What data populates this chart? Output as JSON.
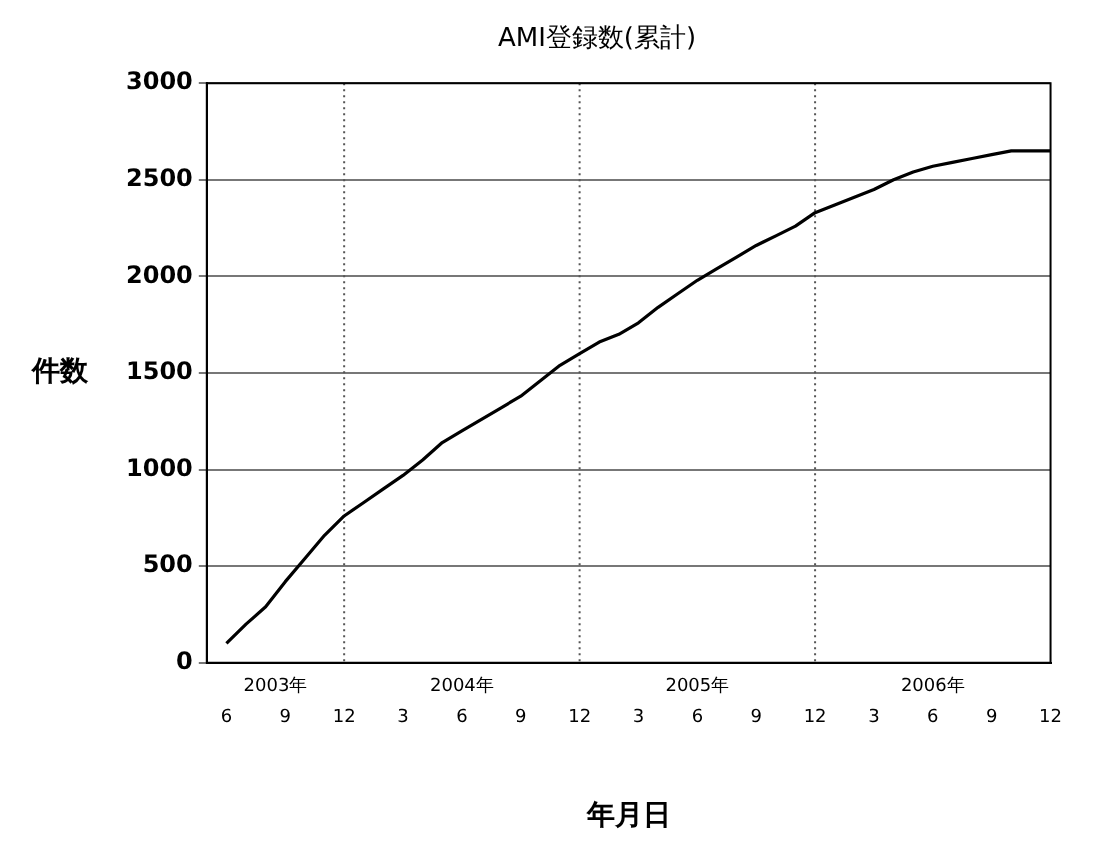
{
  "chart_data": {
    "type": "line",
    "title": "AMI登録数(累計)",
    "xlabel": "年月日",
    "ylabel": "件数",
    "x": [
      "2003-06",
      "2003-07",
      "2003-08",
      "2003-09",
      "2003-10",
      "2003-11",
      "2003-12",
      "2004-01",
      "2004-02",
      "2004-03",
      "2004-04",
      "2004-05",
      "2004-06",
      "2004-07",
      "2004-08",
      "2004-09",
      "2004-10",
      "2004-11",
      "2004-12",
      "2005-01",
      "2005-02",
      "2005-03",
      "2005-04",
      "2005-05",
      "2005-06",
      "2005-07",
      "2005-08",
      "2005-09",
      "2005-10",
      "2005-11",
      "2005-12",
      "2006-01",
      "2006-02",
      "2006-03",
      "2006-04",
      "2006-05",
      "2006-06",
      "2006-07",
      "2006-08",
      "2006-09",
      "2006-10",
      "2006-11",
      "2006-12"
    ],
    "series": [
      {
        "color": "#000000",
        "values": [
          100,
          200,
          290,
          420,
          540,
          660,
          760,
          830,
          900,
          970,
          1050,
          1140,
          1200,
          1260,
          1320,
          1380,
          1460,
          1540,
          1600,
          1660,
          1700,
          1760,
          1840,
          1910,
          1980,
          2040,
          2100,
          2160,
          2210,
          2260,
          2330,
          2370,
          2410,
          2450,
          2500,
          2540,
          2570,
          2590,
          2610,
          2630,
          2650,
          2650,
          2650
        ]
      }
    ],
    "xlim": [
      "2003-05",
      "2006-12"
    ],
    "xticks": [
      {
        "value": "2003-06",
        "label": "6"
      },
      {
        "value": "2003-09",
        "label": "9"
      },
      {
        "value": "2003-12",
        "label": "12"
      },
      {
        "value": "2004-03",
        "label": "3"
      },
      {
        "value": "2004-06",
        "label": "6"
      },
      {
        "value": "2004-09",
        "label": "9"
      },
      {
        "value": "2004-12",
        "label": "12"
      },
      {
        "value": "2005-03",
        "label": "3"
      },
      {
        "value": "2005-06",
        "label": "6"
      },
      {
        "value": "2005-09",
        "label": "9"
      },
      {
        "value": "2005-12",
        "label": "12"
      },
      {
        "value": "2006-03",
        "label": "3"
      },
      {
        "value": "2006-06",
        "label": "6"
      },
      {
        "value": "2006-09",
        "label": "9"
      },
      {
        "value": "2006-12",
        "label": "12"
      }
    ],
    "ylim": [
      0,
      3000
    ],
    "yticks": [
      0,
      500,
      1000,
      1500,
      2000,
      2500,
      3000
    ],
    "grid": "y",
    "marker": "none",
    "line_style": "solid",
    "ref_lines": [
      {
        "axis": "x",
        "value": "2003-12",
        "line_style": "dotted"
      },
      {
        "axis": "x",
        "value": "2004-12",
        "line_style": "dotted"
      },
      {
        "axis": "x",
        "value": "2005-12",
        "line_style": "dotted"
      }
    ],
    "annotations": [
      "2003年",
      "2004年",
      "2005年",
      "2006年"
    ]
  }
}
